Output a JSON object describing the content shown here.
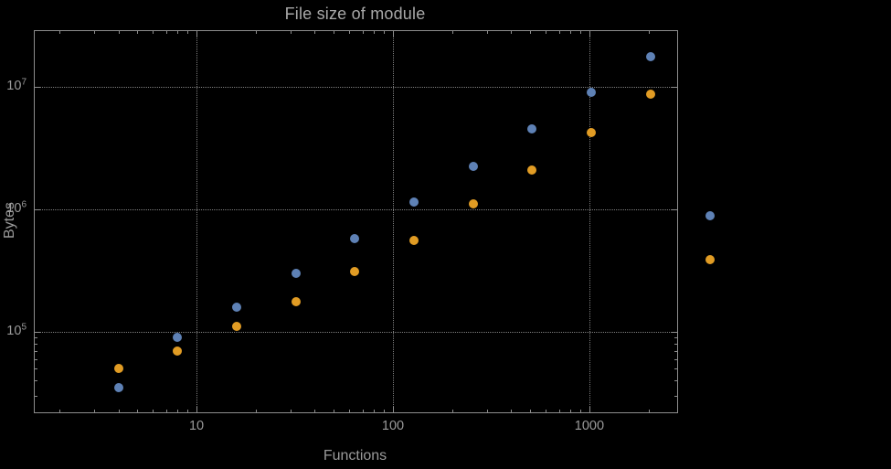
{
  "chart_data": {
    "type": "scatter",
    "title": "File size of module",
    "xlabel": "Functions",
    "ylabel": "Bytes",
    "x_scale": "log",
    "y_scale": "log",
    "grid": true,
    "legend": "none",
    "xlim": [
      1.5,
      2800
    ],
    "ylim": [
      22000,
      28500000
    ],
    "x_ticks": [
      10,
      100,
      1000
    ],
    "x_tick_labels": [
      "10",
      "100",
      "1000"
    ],
    "y_ticks": [
      100000,
      1000000,
      10000000
    ],
    "y_tick_labels": [
      {
        "base": "10",
        "exp": "5"
      },
      {
        "base": "10",
        "exp": "6"
      },
      {
        "base": "10",
        "exp": "7"
      }
    ],
    "x": [
      4,
      8,
      16,
      32,
      64,
      128,
      256,
      512,
      1024,
      2048,
      4096
    ],
    "series": [
      {
        "name": "blue",
        "color": "#5e81b5",
        "values": [
          35000,
          90000,
          160000,
          300000,
          580000,
          1150000,
          2250000,
          4500000,
          9000000,
          17500000,
          880000
        ]
      },
      {
        "name": "orange",
        "color": "#e19c24",
        "values": [
          50000,
          70000,
          110000,
          175000,
          310000,
          560000,
          1100000,
          2100000,
          4200000,
          8700000,
          390000
        ]
      }
    ]
  }
}
